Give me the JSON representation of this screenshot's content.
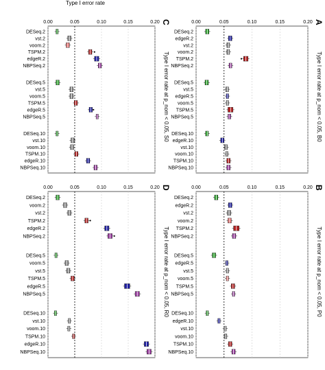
{
  "figure": {
    "top_axis_label": "Type I error rate"
  },
  "chart_data": [
    {
      "type": "boxplot",
      "panel": "A",
      "title": "Type I error rate at p_nom < 0.05, B0",
      "xlabel": "Type I error rate",
      "xlim": [
        0,
        0.2
      ],
      "x_ticks": [
        "0.00",
        "0.05",
        "0.10",
        "0.15",
        "0.20"
      ],
      "reference_line": 0.05,
      "grid": true,
      "series": [
        {
          "label": "DESeq.2",
          "color": "#2ca02c",
          "q1": 0.017,
          "median": 0.02,
          "q3": 0.023,
          "outliers": []
        },
        {
          "label": "edgeR.2",
          "color": "#1f1fa0",
          "q1": 0.058,
          "median": 0.061,
          "q3": 0.064,
          "outliers": []
        },
        {
          "label": "vst.2",
          "color": "#888888",
          "q1": 0.055,
          "median": 0.058,
          "q3": 0.06,
          "outliers": []
        },
        {
          "label": "voom.2",
          "color": "#888888",
          "q1": 0.055,
          "median": 0.058,
          "q3": 0.06,
          "outliers": []
        },
        {
          "label": "TSPM.2",
          "color": "#b22222",
          "q1": 0.085,
          "median": 0.089,
          "q3": 0.093,
          "outliers": [
            0.081
          ]
        },
        {
          "label": "NBPSeq.2",
          "color": "#9b3fa0",
          "q1": 0.059,
          "median": 0.062,
          "q3": 0.064,
          "outliers": []
        },
        {
          "label": "DESeq.5",
          "color": "#2ca02c",
          "q1": 0.016,
          "median": 0.019,
          "q3": 0.022,
          "outliers": []
        },
        {
          "label": "vst.5",
          "color": "#888888",
          "q1": 0.053,
          "median": 0.056,
          "q3": 0.058,
          "outliers": []
        },
        {
          "label": "edgeR.5",
          "color": "#1f1fa0",
          "q1": 0.054,
          "median": 0.056,
          "q3": 0.058,
          "outliers": []
        },
        {
          "label": "voom.5",
          "color": "#888888",
          "q1": 0.054,
          "median": 0.056,
          "q3": 0.058,
          "outliers": []
        },
        {
          "label": "TSPM.5",
          "color": "#b22222",
          "q1": 0.057,
          "median": 0.062,
          "q3": 0.066,
          "outliers": []
        },
        {
          "label": "NBPSeq.5",
          "color": "#9b3fa0",
          "q1": 0.057,
          "median": 0.059,
          "q3": 0.062,
          "outliers": []
        },
        {
          "label": "DESeq.10",
          "color": "#2ca02c",
          "q1": 0.017,
          "median": 0.02,
          "q3": 0.022,
          "outliers": []
        },
        {
          "label": "edgeR.10",
          "color": "#1f1fa0",
          "q1": 0.044,
          "median": 0.047,
          "q3": 0.05,
          "outliers": []
        },
        {
          "label": "vst.10",
          "color": "#888888",
          "q1": 0.051,
          "median": 0.054,
          "q3": 0.056,
          "outliers": []
        },
        {
          "label": "voom.10",
          "color": "#888888",
          "q1": 0.053,
          "median": 0.055,
          "q3": 0.057,
          "outliers": []
        },
        {
          "label": "TSPM.10",
          "color": "#b22222",
          "q1": 0.055,
          "median": 0.058,
          "q3": 0.061,
          "outliers": []
        },
        {
          "label": "NBPSeq.10",
          "color": "#9b3fa0",
          "q1": 0.055,
          "median": 0.058,
          "q3": 0.061,
          "outliers": []
        }
      ]
    },
    {
      "type": "boxplot",
      "panel": "B",
      "title": "Type I error rate at p_nom < 0.05, P0",
      "xlabel": "",
      "xlim": [
        0,
        0.2
      ],
      "x_ticks": [
        "0.00",
        "0.05",
        "0.10",
        "0.15",
        "0.20"
      ],
      "reference_line": 0.05,
      "grid": true,
      "series": [
        {
          "label": "DESeq.2",
          "color": "#2ca02c",
          "q1": 0.033,
          "median": 0.036,
          "q3": 0.039,
          "outliers": []
        },
        {
          "label": "edgeR.2",
          "color": "#1f1fa0",
          "q1": 0.058,
          "median": 0.061,
          "q3": 0.064,
          "outliers": []
        },
        {
          "label": "vst.2",
          "color": "#888888",
          "q1": 0.056,
          "median": 0.059,
          "q3": 0.062,
          "outliers": []
        },
        {
          "label": "voom.2",
          "color": "#e07070",
          "q1": 0.057,
          "median": 0.06,
          "q3": 0.063,
          "outliers": []
        },
        {
          "label": "TSPM.2",
          "color": "#b22222",
          "q1": 0.067,
          "median": 0.072,
          "q3": 0.077,
          "outliers": []
        },
        {
          "label": "NBPSeq.2",
          "color": "#9b3fa0",
          "q1": 0.065,
          "median": 0.068,
          "q3": 0.071,
          "outliers": []
        },
        {
          "label": "DESeq.5",
          "color": "#2ca02c",
          "q1": 0.029,
          "median": 0.032,
          "q3": 0.035,
          "outliers": []
        },
        {
          "label": "edgeR.5",
          "color": "#1f1fa0",
          "q1": 0.053,
          "median": 0.055,
          "q3": 0.057,
          "outliers": []
        },
        {
          "label": "vst.5",
          "color": "#888888",
          "q1": 0.054,
          "median": 0.056,
          "q3": 0.058,
          "outliers": []
        },
        {
          "label": "voom.5",
          "color": "#e07070",
          "q1": 0.054,
          "median": 0.056,
          "q3": 0.058,
          "outliers": []
        },
        {
          "label": "TSPM.5",
          "color": "#b22222",
          "q1": 0.063,
          "median": 0.066,
          "q3": 0.069,
          "outliers": []
        },
        {
          "label": "NBPSeq.5",
          "color": "#9b3fa0",
          "q1": 0.065,
          "median": 0.067,
          "q3": 0.069,
          "outliers": []
        },
        {
          "label": "DESeq.10",
          "color": "#2ca02c",
          "q1": 0.018,
          "median": 0.02,
          "q3": 0.022,
          "outliers": []
        },
        {
          "label": "edgeR.10",
          "color": "#1f1fa0",
          "q1": 0.039,
          "median": 0.041,
          "q3": 0.043,
          "outliers": []
        },
        {
          "label": "vst.10",
          "color": "#888888",
          "q1": 0.05,
          "median": 0.052,
          "q3": 0.054,
          "outliers": []
        },
        {
          "label": "voom.10",
          "color": "#888888",
          "q1": 0.051,
          "median": 0.053,
          "q3": 0.055,
          "outliers": []
        },
        {
          "label": "TSPM.10",
          "color": "#b22222",
          "q1": 0.058,
          "median": 0.061,
          "q3": 0.064,
          "outliers": []
        },
        {
          "label": "NBPSeq.10",
          "color": "#9b3fa0",
          "q1": 0.064,
          "median": 0.067,
          "q3": 0.07,
          "outliers": []
        }
      ]
    },
    {
      "type": "boxplot",
      "panel": "C",
      "title": "Type I error rate at p_nom < 0.05, S0",
      "xlabel": "Type I error rate",
      "xlim": [
        0,
        0.2
      ],
      "x_ticks": [
        "0.00",
        "0.05",
        "0.10",
        "0.15",
        "0.20"
      ],
      "reference_line": 0.05,
      "grid": true,
      "series": [
        {
          "label": "DESeq.2",
          "color": "#2ca02c",
          "q1": 0.015,
          "median": 0.017,
          "q3": 0.019,
          "outliers": []
        },
        {
          "label": "vst.2",
          "color": "#888888",
          "q1": 0.037,
          "median": 0.04,
          "q3": 0.043,
          "outliers": []
        },
        {
          "label": "voom.2",
          "color": "#e07070",
          "q1": 0.034,
          "median": 0.037,
          "q3": 0.04,
          "outliers": []
        },
        {
          "label": "TSPM.2",
          "color": "#b22222",
          "q1": 0.076,
          "median": 0.079,
          "q3": 0.082,
          "outliers": [
            0.087
          ]
        },
        {
          "label": "edgeR.2",
          "color": "#1f1fa0",
          "q1": 0.087,
          "median": 0.091,
          "q3": 0.095,
          "outliers": []
        },
        {
          "label": "NBPSeq.2",
          "color": "#9b3fa0",
          "q1": 0.094,
          "median": 0.097,
          "q3": 0.1,
          "outliers": []
        },
        {
          "label": "DESeq.5",
          "color": "#2ca02c",
          "q1": 0.015,
          "median": 0.018,
          "q3": 0.021,
          "outliers": []
        },
        {
          "label": "vst.5",
          "color": "#888888",
          "q1": 0.041,
          "median": 0.044,
          "q3": 0.047,
          "outliers": []
        },
        {
          "label": "voom.5",
          "color": "#888888",
          "q1": 0.041,
          "median": 0.044,
          "q3": 0.047,
          "outliers": []
        },
        {
          "label": "TSPM.5",
          "color": "#b22222",
          "q1": 0.049,
          "median": 0.052,
          "q3": 0.055,
          "outliers": []
        },
        {
          "label": "edgeR.5",
          "color": "#1f1fa0",
          "q1": 0.077,
          "median": 0.08,
          "q3": 0.083,
          "outliers": [
            0.085
          ]
        },
        {
          "label": "NBPSeq.5",
          "color": "#9b3fa0",
          "q1": 0.09,
          "median": 0.092,
          "q3": 0.094,
          "outliers": []
        },
        {
          "label": "DESeq.10",
          "color": "#2ca02c",
          "q1": 0.015,
          "median": 0.017,
          "q3": 0.019,
          "outliers": []
        },
        {
          "label": "vst.10",
          "color": "#888888",
          "q1": 0.043,
          "median": 0.046,
          "q3": 0.049,
          "outliers": []
        },
        {
          "label": "voom.10",
          "color": "#888888",
          "q1": 0.042,
          "median": 0.045,
          "q3": 0.048,
          "outliers": []
        },
        {
          "label": "TSPM.10",
          "color": "#b22222",
          "q1": 0.05,
          "median": 0.053,
          "q3": 0.056,
          "outliers": []
        },
        {
          "label": "edgeR.10",
          "color": "#1f1fa0",
          "q1": 0.072,
          "median": 0.075,
          "q3": 0.078,
          "outliers": []
        },
        {
          "label": "NBPSeq.10",
          "color": "#9b3fa0",
          "q1": 0.086,
          "median": 0.089,
          "q3": 0.092,
          "outliers": []
        }
      ]
    },
    {
      "type": "boxplot",
      "panel": "D",
      "title": "Type I error rate at p_nom < 0.05, R0",
      "xlabel": "",
      "xlim": [
        0,
        0.2
      ],
      "x_ticks": [
        "0.00",
        "0.05",
        "0.10",
        "0.15",
        "0.20"
      ],
      "reference_line": 0.05,
      "grid": true,
      "series": [
        {
          "label": "DESeq.2",
          "color": "#2ca02c",
          "q1": 0.015,
          "median": 0.018,
          "q3": 0.021,
          "outliers": []
        },
        {
          "label": "voom.2",
          "color": "#888888",
          "q1": 0.029,
          "median": 0.032,
          "q3": 0.035,
          "outliers": []
        },
        {
          "label": "vst.2",
          "color": "#888888",
          "q1": 0.037,
          "median": 0.04,
          "q3": 0.043,
          "outliers": []
        },
        {
          "label": "TSPM.2",
          "color": "#b22222",
          "q1": 0.069,
          "median": 0.072,
          "q3": 0.075,
          "outliers": [
            0.079
          ]
        },
        {
          "label": "edgeR.2",
          "color": "#1f1fa0",
          "q1": 0.106,
          "median": 0.11,
          "q3": 0.114,
          "outliers": []
        },
        {
          "label": "NBPSeq.2",
          "color": "#9b3fa0",
          "q1": 0.112,
          "median": 0.116,
          "q3": 0.12,
          "outliers": [
            0.124
          ]
        },
        {
          "label": "DESeq.5",
          "color": "#2ca02c",
          "q1": 0.013,
          "median": 0.015,
          "q3": 0.017,
          "outliers": []
        },
        {
          "label": "voom.5",
          "color": "#888888",
          "q1": 0.032,
          "median": 0.035,
          "q3": 0.038,
          "outliers": []
        },
        {
          "label": "vst.5",
          "color": "#888888",
          "q1": 0.035,
          "median": 0.038,
          "q3": 0.041,
          "outliers": []
        },
        {
          "label": "TSPM.5",
          "color": "#b22222",
          "q1": 0.043,
          "median": 0.046,
          "q3": 0.049,
          "outliers": []
        },
        {
          "label": "edgeR.5",
          "color": "#1f1fa0",
          "q1": 0.143,
          "median": 0.148,
          "q3": 0.153,
          "outliers": []
        },
        {
          "label": "NBPSeq.5",
          "color": "#9b3fa0",
          "q1": 0.163,
          "median": 0.167,
          "q3": 0.171,
          "outliers": []
        },
        {
          "label": "DESeq.10",
          "color": "#2ca02c",
          "q1": 0.012,
          "median": 0.014,
          "q3": 0.016,
          "outliers": []
        },
        {
          "label": "vst.10",
          "color": "#888888",
          "q1": 0.038,
          "median": 0.04,
          "q3": 0.042,
          "outliers": []
        },
        {
          "label": "voom.10",
          "color": "#888888",
          "q1": 0.037,
          "median": 0.039,
          "q3": 0.041,
          "outliers": []
        },
        {
          "label": "TSPM.10",
          "color": "#b22222",
          "q1": 0.046,
          "median": 0.048,
          "q3": 0.05,
          "outliers": []
        },
        {
          "label": "edgeR.10",
          "color": "#1f1fa0",
          "q1": 0.18,
          "median": 0.184,
          "q3": 0.188,
          "outliers": []
        },
        {
          "label": "NBPSeq.10",
          "color": "#9b3fa0",
          "q1": 0.185,
          "median": 0.189,
          "q3": 0.193,
          "outliers": []
        }
      ]
    }
  ]
}
